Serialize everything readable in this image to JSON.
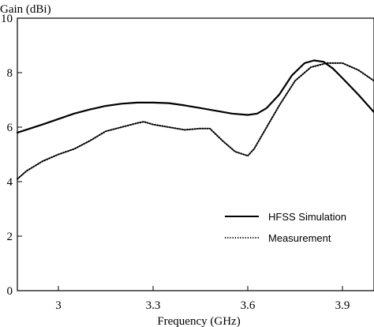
{
  "chart_data": {
    "type": "line",
    "ylabel": "Gain (dBi)",
    "xlabel": "Frequency (GHz)",
    "xlim": [
      2.87,
      4.0
    ],
    "ylim": [
      0,
      10
    ],
    "xticks": [
      3,
      3.3,
      3.6,
      3.9
    ],
    "xtick_labels": [
      "3",
      "3.3",
      "3.6",
      "3.9"
    ],
    "yticks": [
      0,
      2,
      4,
      6,
      8,
      10
    ],
    "ytick_labels": [
      "0",
      "2",
      "4",
      "6",
      "8",
      "10"
    ],
    "grid": false,
    "legend_position": "lower-right",
    "series": [
      {
        "name": "HFSS Simulation",
        "style": "solid",
        "x": [
          2.87,
          2.95,
          3.0,
          3.05,
          3.1,
          3.15,
          3.2,
          3.25,
          3.3,
          3.35,
          3.4,
          3.45,
          3.5,
          3.55,
          3.6,
          3.63,
          3.66,
          3.7,
          3.74,
          3.78,
          3.81,
          3.84,
          3.87,
          3.9,
          3.95,
          4.0
        ],
        "y": [
          5.8,
          6.1,
          6.3,
          6.5,
          6.65,
          6.78,
          6.86,
          6.9,
          6.9,
          6.88,
          6.8,
          6.7,
          6.6,
          6.5,
          6.45,
          6.5,
          6.7,
          7.2,
          7.9,
          8.35,
          8.45,
          8.4,
          8.15,
          7.8,
          7.2,
          6.55
        ]
      },
      {
        "name": "Measurement",
        "style": "dotted",
        "x": [
          2.87,
          2.9,
          2.95,
          3.0,
          3.05,
          3.1,
          3.15,
          3.2,
          3.25,
          3.27,
          3.3,
          3.35,
          3.4,
          3.45,
          3.48,
          3.52,
          3.56,
          3.6,
          3.62,
          3.65,
          3.7,
          3.75,
          3.8,
          3.85,
          3.9,
          3.95,
          4.0
        ],
        "y": [
          4.1,
          4.4,
          4.75,
          5.0,
          5.2,
          5.5,
          5.85,
          6.0,
          6.15,
          6.2,
          6.1,
          6.0,
          5.9,
          5.95,
          5.95,
          5.5,
          5.1,
          4.95,
          5.2,
          5.8,
          6.8,
          7.7,
          8.2,
          8.35,
          8.35,
          8.1,
          7.7
        ]
      }
    ]
  }
}
